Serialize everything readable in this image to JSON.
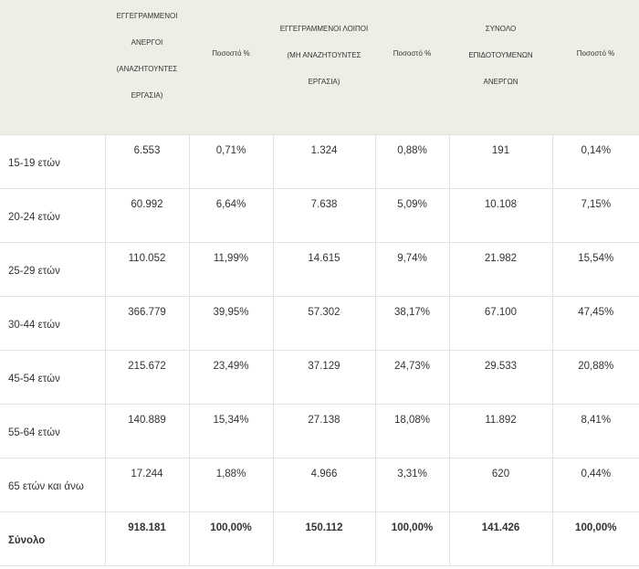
{
  "headers": {
    "registered_seeking": "ΕΓΓΕΓΡΑΜΜΕΝΟΙ ΑΝΕΡΓΟΙ (ΑΝΑΖΗΤΟΥΝΤΕΣ ΕΡΓΑΣΙΑ)",
    "pct1": "Ποσοστό %",
    "registered_other": "ΕΓΓΕΓΡΑΜΜΕΝΟΙ ΛΟΙΠΟΙ (ΜΗ ΑΝΑΖΗΤΟΥΝΤΕΣ ΕΡΓΑΣΙΑ)",
    "pct2": "Ποσοστό %",
    "subsidized_total": "ΣΥΝΟΛΟ ΕΠΙΔΟΤΟΥΜΕΝΩΝ ΑΝΕΡΓΩΝ",
    "pct3": "Ποσοστό %"
  },
  "rows": [
    {
      "label": "15-19 ετών",
      "c1": "6.553",
      "c2": "0,71%",
      "c3": "1.324",
      "c4": "0,88%",
      "c5": "191",
      "c6": "0,14%"
    },
    {
      "label": "20-24 ετών",
      "c1": "60.992",
      "c2": "6,64%",
      "c3": "7.638",
      "c4": "5,09%",
      "c5": "10.108",
      "c6": "7,15%"
    },
    {
      "label": "25-29 ετών",
      "c1": "110.052",
      "c2": "11,99%",
      "c3": "14.615",
      "c4": "9,74%",
      "c5": "21.982",
      "c6": "15,54%"
    },
    {
      "label": "30-44 ετών",
      "c1": "366.779",
      "c2": "39,95%",
      "c3": "57.302",
      "c4": "38,17%",
      "c5": "67.100",
      "c6": "47,45%"
    },
    {
      "label": "45-54 ετών",
      "c1": "215.672",
      "c2": "23,49%",
      "c3": "37.129",
      "c4": "24,73%",
      "c5": "29.533",
      "c6": "20,88%"
    },
    {
      "label": "55-64 ετών",
      "c1": "140.889",
      "c2": "15,34%",
      "c3": "27.138",
      "c4": "18,08%",
      "c5": "11.892",
      "c6": "8,41%"
    },
    {
      "label": "65 ετών και άνω",
      "c1": "17.244",
      "c2": "1,88%",
      "c3": "4.966",
      "c4": "3,31%",
      "c5": "620",
      "c6": "0,44%"
    }
  ],
  "total": {
    "label": "Σύνολο",
    "c1": "918.181",
    "c2": "100,00%",
    "c3": "150.112",
    "c4": "100,00%",
    "c5": "141.426",
    "c6": "100,00%"
  }
}
